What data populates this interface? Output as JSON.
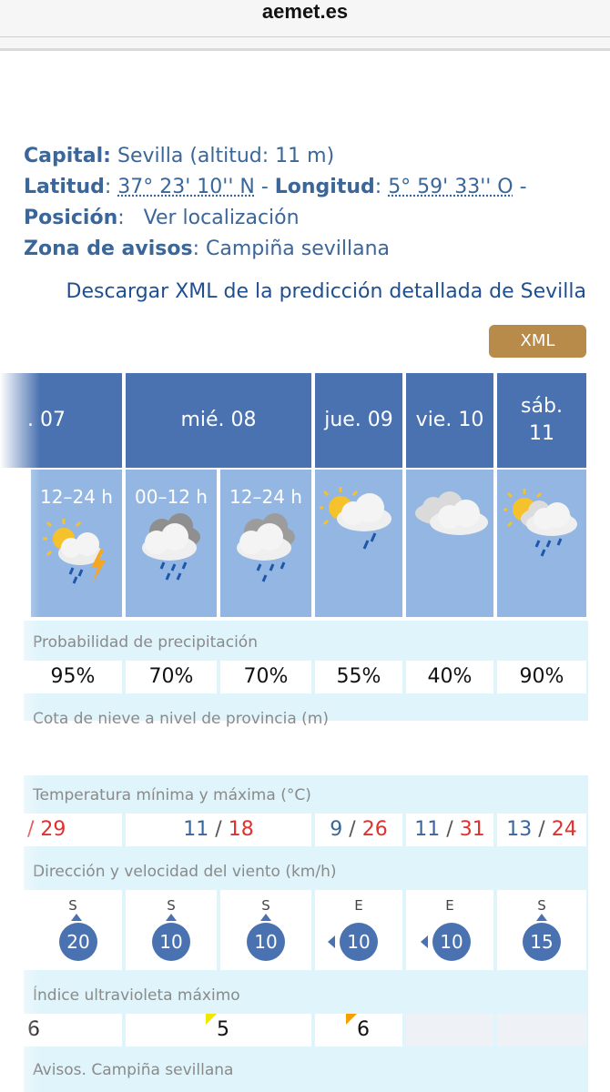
{
  "browser": {
    "url": "aemet.es"
  },
  "info": {
    "capital_label": "Capital:",
    "capital_value": "Sevilla (altitud: 11 m)",
    "lat_label": "Latitud",
    "lat_value": "37° 23' 10'' N",
    "lon_label": "Longitud",
    "lon_value": "5° 59' 33'' O",
    "pos_label": "Posición",
    "pos_value": "Ver localización",
    "zone_label": "Zona de avisos",
    "zone_value": "Campiña sevillana"
  },
  "download_link": "Descargar XML de la predicción detallada de Sevilla",
  "xml_button": "XML",
  "days": [
    {
      "label": ". 07"
    },
    {
      "label": "mié. 08"
    },
    {
      "label": "jue. 09"
    },
    {
      "label": "vie. 10"
    },
    {
      "label_line1": "sáb.",
      "label_line2": "11"
    }
  ],
  "periods": [
    "12–24 h",
    "00–12 h",
    "12–24 h"
  ],
  "weather_icons": [
    "partly-cloudy-storm-rain-icon",
    "cloud-rain-icon",
    "cloud-rain-icon",
    "sun-cloud-rain-icon",
    "clouds-icon",
    "sun-cloud-rain-icon"
  ],
  "sections": {
    "precip": "Probabilidad de precipitación",
    "snow": "Cota de nieve a nivel de provincia (m)",
    "temp": "Temperatura mínima y máxima (°C)",
    "wind": "Dirección y velocidad del viento (km/h)",
    "uv": "Índice ultravioleta máximo",
    "warnings": "Avisos. Campiña sevillana"
  },
  "precip": [
    "95%",
    "70%",
    "70%",
    "55%",
    "40%",
    "90%"
  ],
  "temps": [
    {
      "min": "/",
      "max": "29"
    },
    {
      "min": "11",
      "max": "18"
    },
    {
      "min": "9",
      "max": "26"
    },
    {
      "min": "11",
      "max": "31"
    },
    {
      "min": "13",
      "max": "24"
    }
  ],
  "wind": [
    {
      "dir": "S",
      "speed": "20"
    },
    {
      "dir": "S",
      "speed": "10"
    },
    {
      "dir": "S",
      "speed": "10"
    },
    {
      "dir": "E",
      "speed": "10"
    },
    {
      "dir": "E",
      "speed": "10"
    },
    {
      "dir": "S",
      "speed": "15"
    }
  ],
  "uv": [
    "6",
    "5",
    "6"
  ],
  "colors": {
    "header": "#4a72b0",
    "sky": "#93b7e2",
    "band": "#dff4fb",
    "tmax": "#e03030",
    "tmin": "#3a6699",
    "xml": "#b98b4a"
  }
}
